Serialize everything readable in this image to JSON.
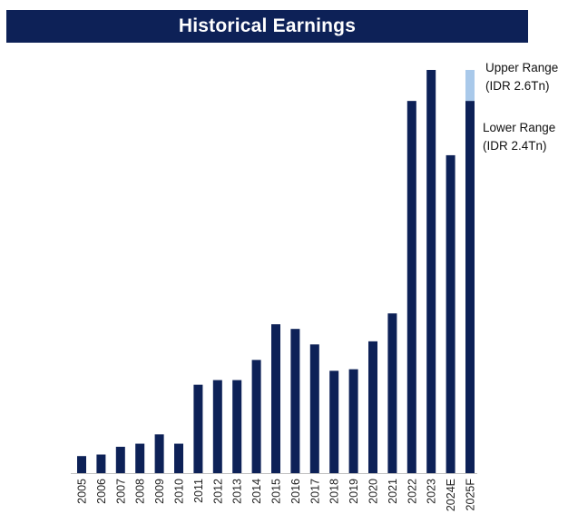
{
  "header": {
    "title": "Historical Earnings"
  },
  "colors": {
    "bar": "#0d2157",
    "upper_range": "#a9c9ea",
    "axis": "#bfbfbf",
    "label": "#222222"
  },
  "annotations": {
    "upper_line1": "Upper Range",
    "upper_line2": "(IDR 2.6Tn)",
    "lower_line1": "Lower Range",
    "lower_line2": "(IDR 2.4Tn)"
  },
  "chart_data": {
    "type": "bar",
    "title": "Historical Earnings",
    "xlabel": "",
    "ylabel": "",
    "categories": [
      "2005",
      "2006",
      "2007",
      "2008",
      "2009",
      "2010",
      "2011",
      "2012",
      "2013",
      "2014",
      "2015",
      "2016",
      "2017",
      "2018",
      "2019",
      "2020",
      "2021",
      "2022",
      "2023",
      "2024E",
      "2025F"
    ],
    "series": [
      {
        "values": [
          0.11,
          0.12,
          0.17,
          0.19,
          0.25,
          0.19,
          0.57,
          0.6,
          0.6,
          0.73,
          0.96,
          0.93,
          0.83,
          0.66,
          0.67,
          0.85,
          1.03,
          2.4,
          2.6,
          2.05,
          2.4
        ]
      }
    ],
    "upper_range": {
      "category": "2025F",
      "value": 2.6
    },
    "ylim": [
      0,
      2.6
    ],
    "grid": false,
    "legend": "none"
  }
}
